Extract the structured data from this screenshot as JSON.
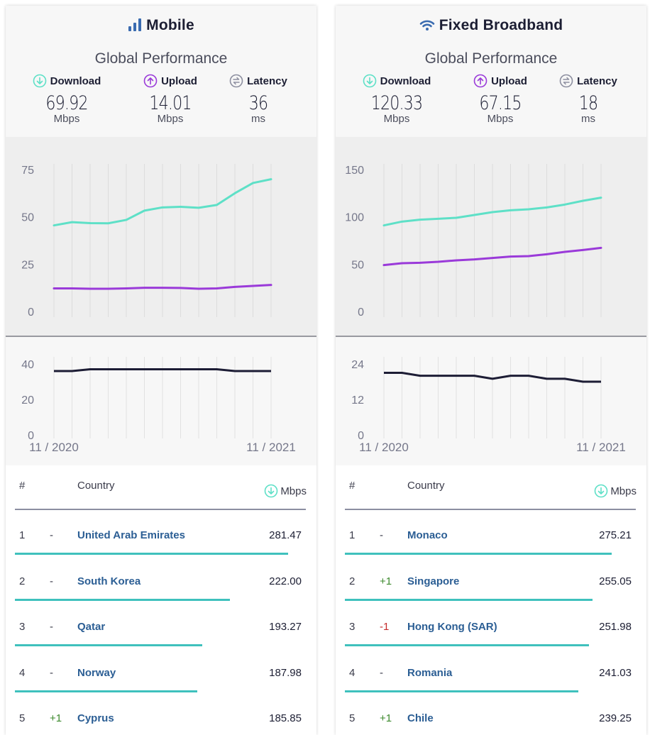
{
  "colors": {
    "download": "#5ee0c7",
    "upload": "#9a3ad9",
    "latency": "#1d1d35",
    "rank_bar": "#3fc1bd",
    "country": "#2b5e94",
    "up_change": "#3d8a2e",
    "down_change": "#c52c2c",
    "latency_icon": "#8d8fa0",
    "title_icon": "#3a6bb0"
  },
  "panels": {
    "mobile": {
      "title": "Mobile",
      "icon": "signal-bars-icon",
      "subtitle": "Global Performance",
      "metrics": {
        "download": {
          "label": "Download",
          "value": "69.92",
          "unit": "Mbps"
        },
        "upload": {
          "label": "Upload",
          "value": "14.01",
          "unit": "Mbps"
        },
        "latency": {
          "label": "Latency",
          "value": "36",
          "unit": "ms"
        }
      },
      "table": {
        "headers": {
          "rank": "#",
          "country": "Country",
          "speed": "Mbps"
        },
        "rows": [
          {
            "rank": "1",
            "change": "-",
            "country": "United Arab Emirates",
            "speed": "281.47",
            "speed_value": 281.47
          },
          {
            "rank": "2",
            "change": "-",
            "country": "South Korea",
            "speed": "222.00",
            "speed_value": 222.0
          },
          {
            "rank": "3",
            "change": "-",
            "country": "Qatar",
            "speed": "193.27",
            "speed_value": 193.27
          },
          {
            "rank": "4",
            "change": "-",
            "country": "Norway",
            "speed": "187.98",
            "speed_value": 187.98
          },
          {
            "rank": "5",
            "change": "+1",
            "country": "Cyprus",
            "speed": "185.85",
            "speed_value": 185.85
          }
        ]
      }
    },
    "fixed": {
      "title": "Fixed Broadband",
      "icon": "wifi-icon",
      "subtitle": "Global Performance",
      "metrics": {
        "download": {
          "label": "Download",
          "value": "120.33",
          "unit": "Mbps"
        },
        "upload": {
          "label": "Upload",
          "value": "67.15",
          "unit": "Mbps"
        },
        "latency": {
          "label": "Latency",
          "value": "18",
          "unit": "ms"
        }
      },
      "table": {
        "headers": {
          "rank": "#",
          "country": "Country",
          "speed": "Mbps"
        },
        "rows": [
          {
            "rank": "1",
            "change": "-",
            "country": "Monaco",
            "speed": "275.21",
            "speed_value": 275.21
          },
          {
            "rank": "2",
            "change": "+1",
            "country": "Singapore",
            "speed": "255.05",
            "speed_value": 255.05
          },
          {
            "rank": "3",
            "change": "-1",
            "country": "Hong Kong (SAR)",
            "speed": "251.98",
            "speed_value": 251.98
          },
          {
            "rank": "4",
            "change": "-",
            "country": "Romania",
            "speed": "241.03",
            "speed_value": 241.03
          },
          {
            "rank": "5",
            "change": "+1",
            "country": "Chile",
            "speed": "239.25",
            "speed_value": 239.25
          }
        ]
      }
    }
  },
  "chart_data": [
    {
      "id": "mobile-speed",
      "type": "line",
      "x": [
        "11/2020",
        "12/2020",
        "01/2021",
        "02/2021",
        "03/2021",
        "04/2021",
        "05/2021",
        "06/2021",
        "07/2021",
        "08/2021",
        "09/2021",
        "10/2021",
        "11/2021"
      ],
      "series": [
        {
          "key": "download",
          "values": [
            45.5,
            47.2,
            46.7,
            46.6,
            48.4,
            53.3,
            55.0,
            55.3,
            54.8,
            56.3,
            62.5,
            67.9,
            69.9
          ]
        },
        {
          "key": "upload",
          "values": [
            12.2,
            12.2,
            12.0,
            12.0,
            12.2,
            12.5,
            12.5,
            12.4,
            12.0,
            12.2,
            13.0,
            13.5,
            14.0
          ]
        }
      ],
      "ylim": [
        0,
        75
      ],
      "yticks": [
        "0",
        "25",
        "50",
        "75"
      ],
      "grid": "vertical"
    },
    {
      "id": "mobile-latency",
      "type": "line",
      "x": [
        "11/2020",
        "12/2020",
        "01/2021",
        "02/2021",
        "03/2021",
        "04/2021",
        "05/2021",
        "06/2021",
        "07/2021",
        "08/2021",
        "09/2021",
        "10/2021",
        "11/2021"
      ],
      "series": [
        {
          "key": "latency",
          "values": [
            36,
            36,
            37,
            37,
            37,
            37,
            37,
            37,
            37,
            37,
            36,
            36,
            36
          ]
        }
      ],
      "ylim": [
        0,
        40
      ],
      "yticks": [
        "0",
        "20",
        "40"
      ],
      "xtick_labels": [
        "11 / 2020",
        "11 / 2021"
      ],
      "grid": "vertical"
    },
    {
      "id": "fixed-speed",
      "type": "line",
      "x": [
        "11/2020",
        "12/2020",
        "01/2021",
        "02/2021",
        "03/2021",
        "04/2021",
        "05/2021",
        "06/2021",
        "07/2021",
        "08/2021",
        "09/2021",
        "10/2021",
        "11/2021"
      ],
      "series": [
        {
          "key": "download",
          "values": [
            91,
            95,
            97,
            98,
            99,
            102,
            105,
            107,
            108,
            110,
            113,
            117,
            120.3
          ]
        },
        {
          "key": "upload",
          "values": [
            49,
            51,
            51.5,
            52.5,
            54,
            55,
            56.5,
            58,
            58.5,
            60.5,
            63,
            65,
            67.2
          ]
        }
      ],
      "ylim": [
        0,
        150
      ],
      "yticks": [
        "0",
        "50",
        "100",
        "150"
      ],
      "grid": "vertical"
    },
    {
      "id": "fixed-latency",
      "type": "line",
      "x": [
        "11/2020",
        "12/2020",
        "01/2021",
        "02/2021",
        "03/2021",
        "04/2021",
        "05/2021",
        "06/2021",
        "07/2021",
        "08/2021",
        "09/2021",
        "10/2021",
        "11/2021"
      ],
      "series": [
        {
          "key": "latency",
          "values": [
            21,
            21,
            20,
            20,
            20,
            20,
            19,
            20,
            20,
            19,
            19,
            18,
            18
          ]
        }
      ],
      "ylim": [
        0,
        24
      ],
      "yticks": [
        "0",
        "12",
        "24"
      ],
      "xtick_labels": [
        "11 / 2020",
        "11 / 2021"
      ],
      "grid": "vertical"
    }
  ]
}
